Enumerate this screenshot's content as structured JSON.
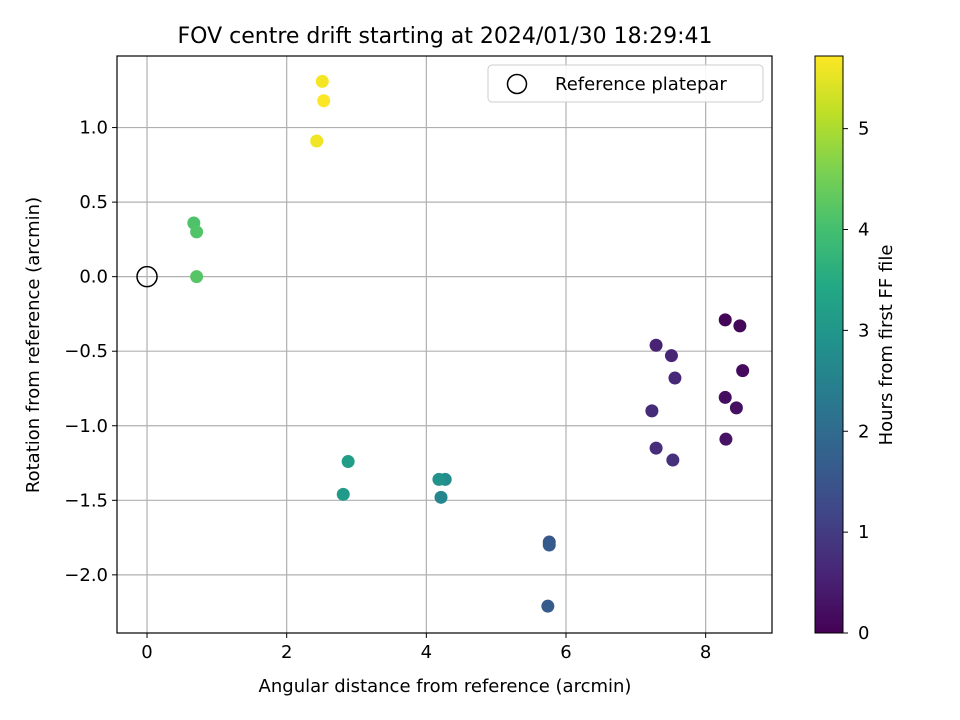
{
  "chart_data": {
    "type": "scatter",
    "title": "FOV centre drift starting at 2024/01/30 18:29:41",
    "xlabel": "Angular distance from reference (arcmin)",
    "ylabel": "Rotation from reference (arcmin)",
    "xlim": [
      -0.43,
      8.95
    ],
    "ylim": [
      -2.39,
      1.48
    ],
    "x_ticks": [
      0,
      2,
      4,
      6,
      8
    ],
    "x_tick_labels": [
      "0",
      "2",
      "4",
      "6",
      "8"
    ],
    "y_ticks": [
      1.0,
      0.5,
      0.0,
      -0.5,
      -1.0,
      -1.5,
      -2.0
    ],
    "y_tick_labels": [
      "1.0",
      "0.5",
      "0.0",
      "−0.5",
      "−1.0",
      "−1.5",
      "−2.0"
    ],
    "grid": true,
    "legend": {
      "placement": "top-right",
      "entries": [
        {
          "label": "Reference platepar",
          "marker": "open-circle"
        }
      ]
    },
    "reference_point": {
      "x": 0,
      "y": 0
    },
    "colorbar": {
      "label": "Hours from first FF file",
      "range": [
        0,
        5.72
      ],
      "ticks": [
        0,
        1,
        2,
        3,
        4,
        5
      ],
      "tick_labels": [
        "0",
        "1",
        "2",
        "3",
        "4",
        "5"
      ],
      "colormap": "viridis"
    },
    "points": [
      {
        "x": 8.28,
        "y": -0.29,
        "hours": 0.05
      },
      {
        "x": 8.49,
        "y": -0.33,
        "hours": 0.1
      },
      {
        "x": 8.53,
        "y": -0.63,
        "hours": 0.15
      },
      {
        "x": 8.28,
        "y": -0.81,
        "hours": 0.2
      },
      {
        "x": 8.44,
        "y": -0.88,
        "hours": 0.25
      },
      {
        "x": 8.29,
        "y": -1.09,
        "hours": 0.3
      },
      {
        "x": 7.29,
        "y": -0.46,
        "hours": 0.55
      },
      {
        "x": 7.51,
        "y": -0.53,
        "hours": 0.6
      },
      {
        "x": 7.56,
        "y": -0.68,
        "hours": 0.65
      },
      {
        "x": 7.23,
        "y": -0.9,
        "hours": 0.7
      },
      {
        "x": 7.29,
        "y": -1.15,
        "hours": 0.75
      },
      {
        "x": 7.53,
        "y": -1.23,
        "hours": 0.8
      },
      {
        "x": 5.76,
        "y": -1.78,
        "hours": 1.55
      },
      {
        "x": 5.76,
        "y": -1.8,
        "hours": 1.6
      },
      {
        "x": 5.74,
        "y": -2.21,
        "hours": 1.65
      },
      {
        "x": 4.21,
        "y": -1.48,
        "hours": 2.6
      },
      {
        "x": 4.27,
        "y": -1.36,
        "hours": 2.75
      },
      {
        "x": 4.18,
        "y": -1.36,
        "hours": 2.9
      },
      {
        "x": 2.81,
        "y": -1.46,
        "hours": 3.1
      },
      {
        "x": 2.88,
        "y": -1.24,
        "hours": 3.15
      },
      {
        "x": 0.67,
        "y": 0.36,
        "hours": 4.1
      },
      {
        "x": 0.71,
        "y": 0.3,
        "hours": 4.15
      },
      {
        "x": 0.71,
        "y": 0.0,
        "hours": 4.2
      },
      {
        "x": 2.43,
        "y": 0.91,
        "hours": 5.6
      },
      {
        "x": 2.51,
        "y": 1.31,
        "hours": 5.65
      },
      {
        "x": 2.53,
        "y": 1.18,
        "hours": 5.7
      }
    ]
  }
}
